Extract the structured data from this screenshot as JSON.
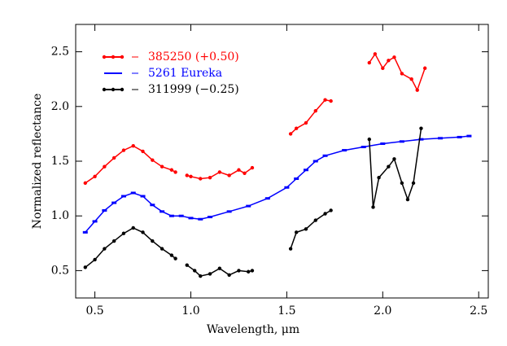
{
  "chart_data": {
    "type": "line",
    "x_label": "Wavelength, μm",
    "y_label": "Normalized reflectance",
    "xlim": [
      0.4,
      2.55
    ],
    "ylim": [
      0.25,
      2.75
    ],
    "xticks": [
      {
        "value": 0.5,
        "label": "0.5"
      },
      {
        "value": 1.0,
        "label": "1.0"
      },
      {
        "value": 1.5,
        "label": "1.5"
      },
      {
        "value": 2.0,
        "label": "2.0"
      },
      {
        "value": 2.5,
        "label": "2.5"
      }
    ],
    "yticks": [
      {
        "value": 0.5,
        "label": "0.5"
      },
      {
        "value": 1.0,
        "label": "1.0"
      },
      {
        "value": 1.5,
        "label": "1.5"
      },
      {
        "value": 2.0,
        "label": "2.0"
      },
      {
        "value": 2.5,
        "label": "2.5"
      }
    ],
    "legend": "upper left",
    "series": [
      {
        "name": "385250 (+0.50)",
        "color": "#ff0000",
        "x": [
          0.45,
          0.5,
          0.55,
          0.6,
          0.65,
          0.7,
          0.75,
          0.8,
          0.85,
          0.9,
          0.92,
          0.95,
          0.98,
          1.0,
          1.05,
          1.1,
          1.15,
          1.2,
          1.25,
          1.28,
          1.32,
          1.42,
          1.52,
          1.55,
          1.6,
          1.65,
          1.7,
          1.73,
          1.83,
          1.93,
          1.96,
          2.0,
          2.03,
          2.06,
          2.1,
          2.15,
          2.18,
          2.22
        ],
        "values": [
          1.3,
          1.36,
          1.45,
          1.53,
          1.6,
          1.64,
          1.59,
          1.51,
          1.45,
          1.42,
          1.4,
          null,
          1.37,
          1.36,
          1.34,
          1.35,
          1.4,
          1.37,
          1.42,
          1.39,
          1.44,
          null,
          1.75,
          1.8,
          1.85,
          1.96,
          2.06,
          2.05,
          null,
          2.4,
          2.48,
          2.35,
          2.42,
          2.45,
          2.3,
          2.25,
          2.15,
          2.35
        ]
      },
      {
        "name": "5261 Eureka",
        "color": "#0000ff",
        "x": [
          0.45,
          0.5,
          0.55,
          0.6,
          0.65,
          0.7,
          0.75,
          0.8,
          0.85,
          0.9,
          0.95,
          1.0,
          1.05,
          1.1,
          1.2,
          1.3,
          1.4,
          1.5,
          1.55,
          1.6,
          1.65,
          1.7,
          1.8,
          1.9,
          2.0,
          2.1,
          2.2,
          2.3,
          2.4,
          2.45
        ],
        "values": [
          0.85,
          0.95,
          1.05,
          1.12,
          1.18,
          1.21,
          1.18,
          1.1,
          1.04,
          1.0,
          1.0,
          0.98,
          0.97,
          0.99,
          1.04,
          1.09,
          1.16,
          1.26,
          1.34,
          1.42,
          1.5,
          1.55,
          1.6,
          1.63,
          1.66,
          1.68,
          1.7,
          1.71,
          1.72,
          1.73
        ]
      },
      {
        "name": "311999 (−0.25)",
        "color": "#000000",
        "x": [
          0.45,
          0.5,
          0.55,
          0.6,
          0.65,
          0.7,
          0.75,
          0.8,
          0.85,
          0.9,
          0.92,
          0.95,
          0.98,
          1.02,
          1.05,
          1.1,
          1.15,
          1.2,
          1.25,
          1.3,
          1.32,
          1.42,
          1.52,
          1.55,
          1.6,
          1.65,
          1.7,
          1.73,
          1.83,
          1.93,
          1.95,
          1.98,
          2.03,
          2.06,
          2.1,
          2.13,
          2.16,
          2.2
        ],
        "values": [
          0.53,
          0.6,
          0.7,
          0.77,
          0.84,
          0.89,
          0.85,
          0.77,
          0.7,
          0.64,
          0.61,
          null,
          0.55,
          0.5,
          0.45,
          0.47,
          0.52,
          0.46,
          0.5,
          0.49,
          0.5,
          null,
          0.7,
          0.85,
          0.88,
          0.96,
          1.02,
          1.05,
          null,
          1.7,
          1.08,
          1.35,
          1.45,
          1.52,
          1.3,
          1.15,
          1.3,
          1.8
        ]
      }
    ]
  }
}
